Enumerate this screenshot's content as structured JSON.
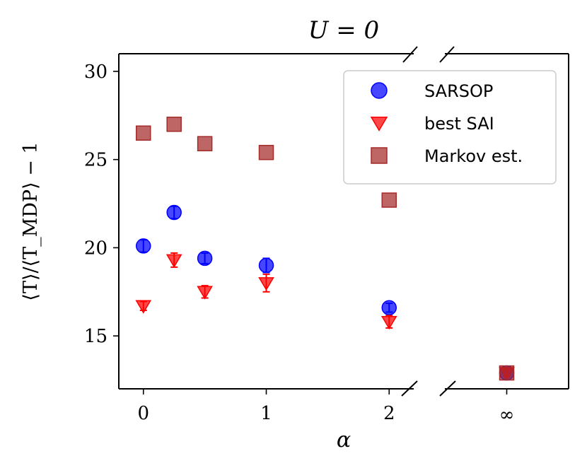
{
  "chart_data": {
    "type": "scatter",
    "title": "U = 0",
    "xlabel": "α",
    "ylabel": "⟨T⟩/⟨T_MDP⟩ − 1",
    "ylim": [
      12,
      31
    ],
    "xlim_left": [
      -0.2,
      2.2
    ],
    "xlim_right": [
      -0.5,
      0.5
    ],
    "y_ticks": [
      15,
      20,
      25,
      30
    ],
    "x_ticks_left": [
      {
        "value": 0,
        "label": "0"
      },
      {
        "value": 1,
        "label": "1"
      },
      {
        "value": 2,
        "label": "2"
      }
    ],
    "x_ticks_right": [
      {
        "value": 0,
        "label": "∞"
      }
    ],
    "grid": false,
    "broken_x_axis": true,
    "legend_position": "top-right",
    "series": [
      {
        "name": "SARSOP",
        "marker": "circle",
        "color": "#0000ff",
        "points": [
          {
            "x": 0,
            "y": 20.1,
            "err": 0.35
          },
          {
            "x": 0.25,
            "y": 22.0,
            "err": 0.35
          },
          {
            "x": 0.5,
            "y": 19.4,
            "err": 0.3
          },
          {
            "x": 1,
            "y": 19.0,
            "err": 0.4
          },
          {
            "x": 2,
            "y": 16.6,
            "err": 0.25
          }
        ],
        "points_right": [
          {
            "x": 0,
            "y": 12.9,
            "err": 0.2
          }
        ]
      },
      {
        "name": "best SAI",
        "marker": "triangle-down",
        "color": "#ff0000",
        "points": [
          {
            "x": 0,
            "y": 16.7,
            "err": 0.25
          },
          {
            "x": 0.25,
            "y": 19.3,
            "err": 0.4
          },
          {
            "x": 0.5,
            "y": 17.5,
            "err": 0.35
          },
          {
            "x": 1,
            "y": 18.0,
            "err": 0.5
          },
          {
            "x": 2,
            "y": 15.8,
            "err": 0.35
          }
        ],
        "points_right": [
          {
            "x": 0,
            "y": 12.9,
            "err": 0.2
          }
        ]
      },
      {
        "name": "Markov est.",
        "marker": "square",
        "color": "#a52a2a",
        "points": [
          {
            "x": 0,
            "y": 26.5
          },
          {
            "x": 0.25,
            "y": 27.0
          },
          {
            "x": 0.5,
            "y": 25.9
          },
          {
            "x": 1,
            "y": 25.4
          },
          {
            "x": 2,
            "y": 22.7
          }
        ],
        "points_right": [
          {
            "x": 0,
            "y": 12.9
          }
        ]
      }
    ]
  }
}
